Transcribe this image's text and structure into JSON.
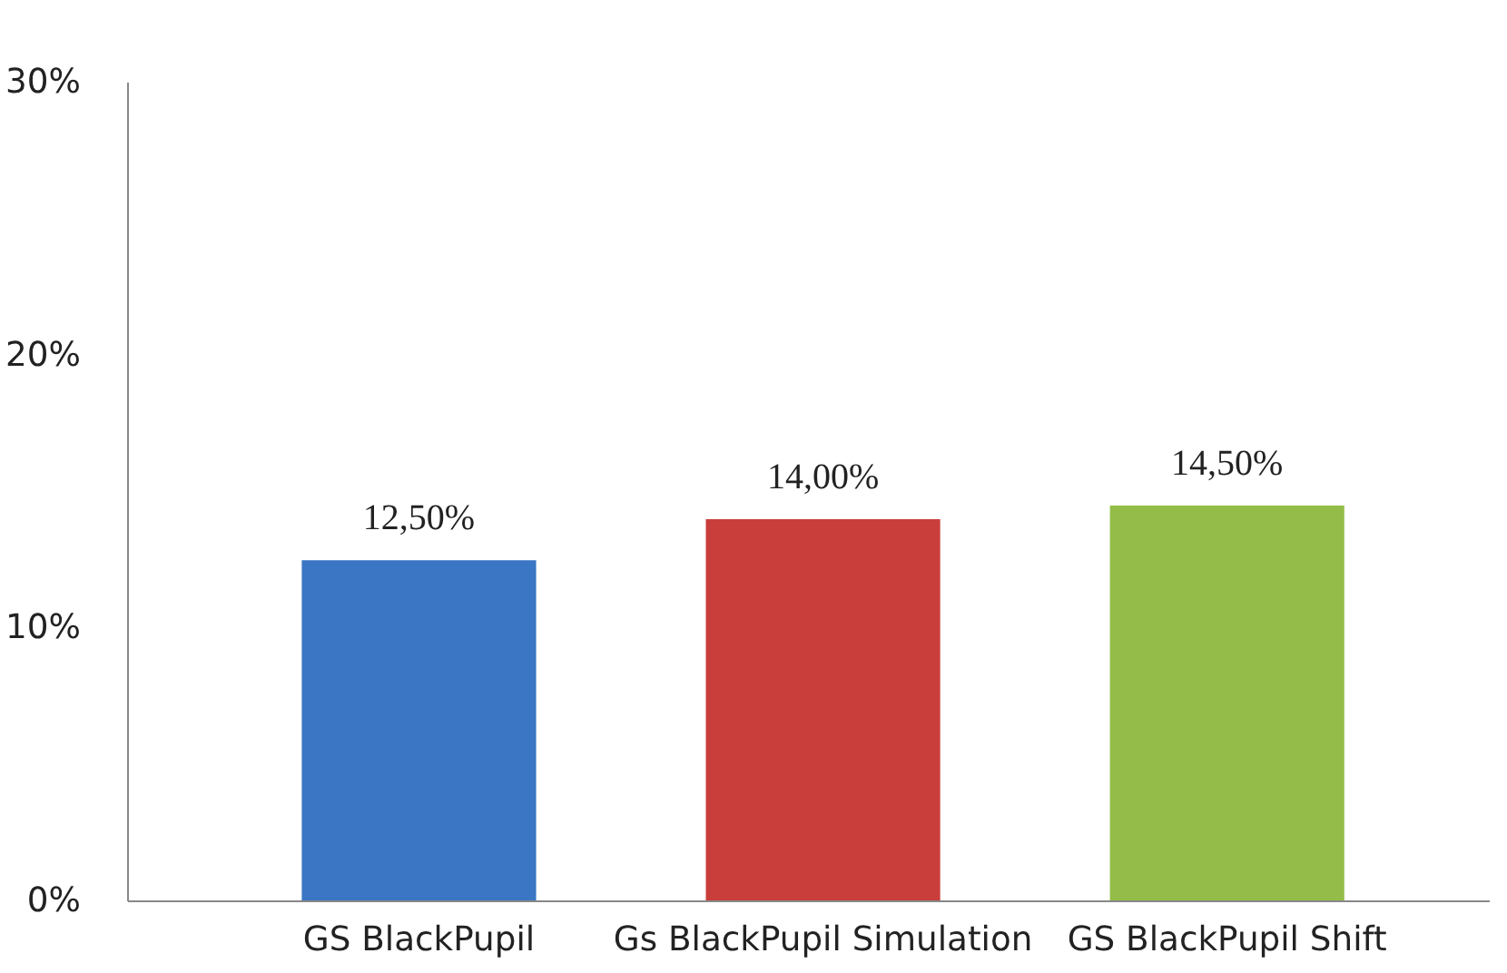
{
  "chart_data": {
    "type": "bar",
    "categories": [
      "GS BlackPupil",
      "Gs BlackPupil Simulation",
      "GS BlackPupil Shift"
    ],
    "values": [
      12.5,
      14.0,
      14.5
    ],
    "colors": [
      "#3a76c4",
      "#c93d3b",
      "#93bd48"
    ],
    "value_labels": [
      "12,50%",
      "14,00%",
      "14,50%"
    ],
    "ylim": [
      0,
      30
    ],
    "yticks": [
      {
        "value": 0,
        "label": "0%"
      },
      {
        "value": 10,
        "label": "10%"
      },
      {
        "value": 20,
        "label": "20%"
      },
      {
        "value": 30,
        "label": "30%"
      }
    ],
    "grid": false
  }
}
